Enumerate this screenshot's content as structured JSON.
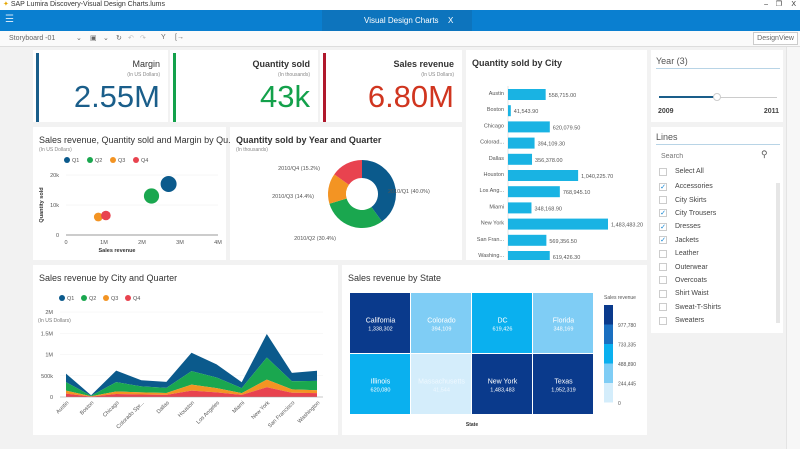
{
  "window": {
    "title": "SAP Lumira Discovery-Visual Design Charts.lums",
    "min": "–",
    "restore": "❐",
    "close": "X"
  },
  "header": {
    "title": "Visual Design Charts",
    "close": "X",
    "menu_icon": "hamburger-icon"
  },
  "toolbar": {
    "storyboard": "Storyboard -01",
    "design_view": "DesignView"
  },
  "kpis": [
    {
      "label": "Margin",
      "sub": "(In US Dollars)",
      "value": "2.55M",
      "color": "#1a5e8a"
    },
    {
      "label": "Quantity sold",
      "sub": "(In thousands)",
      "value": "43k",
      "color": "#13a14b"
    },
    {
      "label": "Sales revenue",
      "sub": "(In US Dollars)",
      "value": "6.80M",
      "color": "#d0351f"
    }
  ],
  "colors": {
    "Q1": "#0b5a8c",
    "Q2": "#1aa74f",
    "Q3": "#f39423",
    "Q4": "#e8434f",
    "bar": "#19b3e3"
  },
  "chart_data": [
    {
      "type": "bar",
      "title": "Quantity sold by City",
      "orientation": "horizontal",
      "categories": [
        "Austin",
        "Boston",
        "Chicago",
        "Colorad...",
        "Dallas",
        "Houston",
        "Los Ang...",
        "Miami",
        "New York",
        "San Fran...",
        "Washing..."
      ],
      "values": [
        558715.0,
        41543.9,
        620079.5,
        394109.3,
        356378.0,
        1040225.7,
        768945.1,
        348168.9,
        1483483.2,
        569356.5,
        619426.3
      ],
      "labels": [
        "558,715.00",
        "41,543.90",
        "620,079.50",
        "394,109.30",
        "356,378.00",
        "1,040,225.70",
        "768,945.10",
        "348,168.90",
        "1,483,483.20",
        "569,356.50",
        "619,426.30"
      ],
      "xlim": [
        0,
        2000000
      ]
    },
    {
      "type": "scatter",
      "title": "Sales revenue, Quantity sold and Margin by Qu...",
      "subtitle": "(In US Dollars)",
      "xlabel": "Sales revenue",
      "ylabel": "Quantity sold",
      "xticks": [
        "0",
        "1M",
        "2M",
        "3M",
        "4M"
      ],
      "yticks": [
        "0",
        "10k",
        "20k"
      ],
      "xlim": [
        0,
        4000000
      ],
      "ylim": [
        0,
        20000
      ],
      "series": [
        {
          "name": "Q1",
          "x": 2700000,
          "y": 17000,
          "size": 1
        },
        {
          "name": "Q2",
          "x": 2250000,
          "y": 13000,
          "size": 0.95
        },
        {
          "name": "Q3",
          "x": 850000,
          "y": 6000,
          "size": 0.55
        },
        {
          "name": "Q4",
          "x": 1050000,
          "y": 6500,
          "size": 0.6
        }
      ]
    },
    {
      "type": "pie",
      "title": "Quantity sold by Year and Quarter",
      "subtitle": "(In thousands)",
      "donut": true,
      "categories": [
        "2010/Q1",
        "2010/Q2",
        "2010/Q3",
        "2010/Q4"
      ],
      "values": [
        40.0,
        30.4,
        14.4,
        15.2
      ],
      "labels": [
        "2010/Q1 (40.0%)",
        "2010/Q2 (30.4%)",
        "2010/Q3 (14.4%)",
        "2010/Q4 (15.2%)"
      ]
    },
    {
      "type": "area",
      "stacked": true,
      "title": "Sales revenue by City and Quarter",
      "ylabel": "(In US Dollars)",
      "categories": [
        "Austin",
        "Boston",
        "Chicago",
        "Colorado Spr...",
        "Dallas",
        "Houston",
        "Los Angeles",
        "Miami",
        "New York",
        "San Francisco",
        "Washington"
      ],
      "yticks": [
        "0",
        "500k",
        "1M",
        "1.5M",
        "2M"
      ],
      "ylim": [
        0,
        2000000
      ],
      "series": [
        {
          "name": "Q4",
          "values": [
            80000,
            10000,
            70000,
            60000,
            50000,
            150000,
            110000,
            50000,
            230000,
            100000,
            90000
          ]
        },
        {
          "name": "Q3",
          "values": [
            70000,
            8000,
            60000,
            50000,
            45000,
            140000,
            100000,
            40000,
            180000,
            80000,
            70000
          ]
        },
        {
          "name": "Q2",
          "values": [
            200000,
            12000,
            220000,
            140000,
            120000,
            320000,
            250000,
            120000,
            520000,
            190000,
            220000
          ]
        },
        {
          "name": "Q1",
          "values": [
            200000,
            12000,
            270000,
            144000,
            141000,
            430000,
            309000,
            138000,
            553000,
            199000,
            239000
          ]
        }
      ]
    },
    {
      "type": "heatmap",
      "title": "Sales revenue by State",
      "xlabel": "State",
      "legend_title": "Sales revenue",
      "legend_ticks": [
        "977,780",
        "733,335",
        "488,890",
        "244,445",
        "0"
      ],
      "cells": [
        {
          "name": "California",
          "label": "1,338,302",
          "value": 1338302
        },
        {
          "name": "Colorado",
          "label": "394,109",
          "value": 394109
        },
        {
          "name": "DC",
          "label": "619,426",
          "value": 619426
        },
        {
          "name": "Florida",
          "label": "348,169",
          "value": 348169
        },
        {
          "name": "Illinois",
          "label": "620,080",
          "value": 620080
        },
        {
          "name": "Massachusetts",
          "label": "41,544",
          "value": 41544
        },
        {
          "name": "New York",
          "label": "1,483,483",
          "value": 1483483
        },
        {
          "name": "Texas",
          "label": "1,952,319",
          "value": 1952319
        }
      ],
      "scale": [
        "#d4edfb",
        "#7fcdf5",
        "#0ab0ef",
        "#1a6fc0",
        "#0a3a8c"
      ]
    }
  ],
  "filters": {
    "year": {
      "title": "Year (3)",
      "min": "2009",
      "max": "2011",
      "value": 2010
    },
    "lines": {
      "title": "Lines",
      "search_placeholder": "Search",
      "select_all": "Select All",
      "items": [
        {
          "label": "Accessories",
          "checked": true
        },
        {
          "label": "City Skirts",
          "checked": false
        },
        {
          "label": "City Trousers",
          "checked": true
        },
        {
          "label": "Dresses",
          "checked": true
        },
        {
          "label": "Jackets",
          "checked": true
        },
        {
          "label": "Leather",
          "checked": false
        },
        {
          "label": "Outerwear",
          "checked": false
        },
        {
          "label": "Overcoats",
          "checked": false
        },
        {
          "label": "Shirt Waist",
          "checked": false
        },
        {
          "label": "Sweat-T-Shirts",
          "checked": false
        },
        {
          "label": "Sweaters",
          "checked": false
        }
      ]
    }
  }
}
